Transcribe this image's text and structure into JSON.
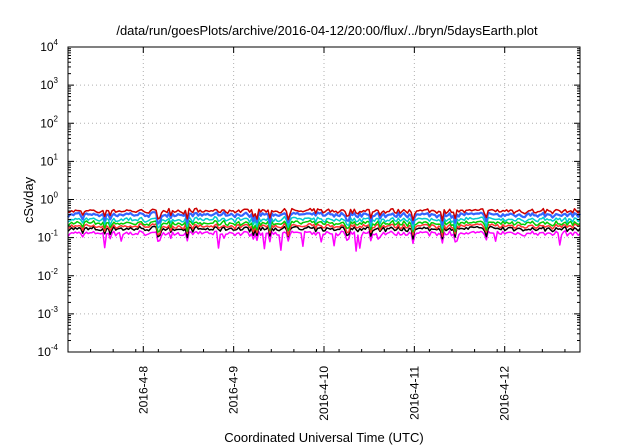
{
  "chart_data": {
    "type": "line",
    "title": "/data/run/goesPlots/archive/2016-04-12/20:00/flux/../bryn/5daysEarth.plot",
    "xlabel": "Coordinated Universal Time (UTC)",
    "ylabel": "cSv/day",
    "yscale": "log",
    "ylim": [
      0.0001,
      10000
    ],
    "y_ticks": [
      {
        "base": "10",
        "exp": "-4"
      },
      {
        "base": "10",
        "exp": "-3"
      },
      {
        "base": "10",
        "exp": "-2"
      },
      {
        "base": "10",
        "exp": "-1"
      },
      {
        "base": "10",
        "exp": "0"
      },
      {
        "base": "10",
        "exp": "1"
      },
      {
        "base": "10",
        "exp": "2"
      },
      {
        "base": "10",
        "exp": "3"
      },
      {
        "base": "10",
        "exp": "4"
      }
    ],
    "xlim": [
      "2016-04-07 04:00",
      "2016-04-12 20:00"
    ],
    "x_tick_labels": [
      "2016-4-8",
      "2016-4-9",
      "2016-4-10",
      "2016-4-11",
      "2016-4-12"
    ],
    "x_tick_dates": [
      "2016-04-08",
      "2016-04-09",
      "2016-04-10",
      "2016-04-11",
      "2016-04-12"
    ],
    "grid": true,
    "legend": "none",
    "series": [
      {
        "color": "#ff00ff",
        "level": 0.13,
        "variation": "high dips to 0.05"
      },
      {
        "color": "#000000",
        "level": 0.17
      },
      {
        "color": "#ff3333",
        "level": 0.2
      },
      {
        "color": "#00cc00",
        "level": 0.24
      },
      {
        "color": "#00cccc",
        "level": 0.3
      },
      {
        "color": "#3366ff",
        "level": 0.4
      },
      {
        "color": "#cc0000",
        "level": 0.5
      }
    ]
  }
}
